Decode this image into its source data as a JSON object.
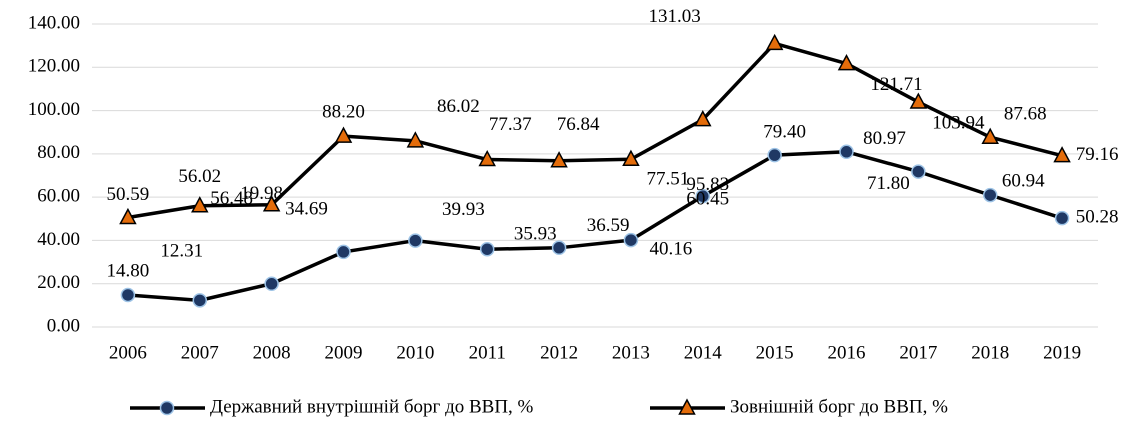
{
  "chart_data": {
    "type": "line",
    "categories": [
      "2006",
      "2007",
      "2008",
      "2009",
      "2010",
      "2011",
      "2012",
      "2013",
      "2014",
      "2015",
      "2016",
      "2017",
      "2018",
      "2019"
    ],
    "series": [
      {
        "name": "Державний внутрішній борг до ВВП, %",
        "color": "#000000",
        "marker": "circle",
        "marker_color": "#1f3864",
        "marker_edge": "#9dc3e6",
        "values": [
          14.8,
          12.31,
          19.98,
          34.69,
          39.93,
          35.93,
          36.59,
          40.16,
          60.45,
          79.4,
          80.97,
          71.8,
          60.94,
          50.28
        ],
        "value_labels": [
          "14.80",
          "12.31",
          "19.98",
          "34.69",
          "39.93",
          "35.93",
          "36.59",
          "40.16",
          "60.45",
          "79.40",
          "80.97",
          "71.80",
          "60.94",
          "50.28"
        ]
      },
      {
        "name": "Зовнішній борг до ВВП, %",
        "color": "#000000",
        "marker": "triangle",
        "marker_color": "#e46c0a",
        "marker_edge": "#000000",
        "values": [
          50.59,
          56.02,
          56.48,
          88.2,
          86.02,
          77.37,
          76.84,
          77.51,
          95.83,
          131.03,
          121.71,
          103.94,
          87.68,
          79.16
        ],
        "value_labels": [
          "50.59",
          "56.02",
          "56.48",
          "88.20",
          "86.02",
          "77.37",
          "76.84",
          "77.51",
          "95.83",
          "131.03",
          "121.71",
          "103.94",
          "87.68",
          "79.16"
        ]
      }
    ],
    "ylim": [
      0,
      140
    ],
    "yticks": [
      {
        "value": 0,
        "label": "0.00"
      },
      {
        "value": 20,
        "label": "20.00"
      },
      {
        "value": 40,
        "label": "40.00"
      },
      {
        "value": 60,
        "label": "60.00"
      },
      {
        "value": 80,
        "label": "80.00"
      },
      {
        "value": 100,
        "label": "100.00"
      },
      {
        "value": 120,
        "label": "120.00"
      },
      {
        "value": 140,
        "label": "140.00"
      }
    ],
    "grid": true,
    "legend": "bottom"
  }
}
